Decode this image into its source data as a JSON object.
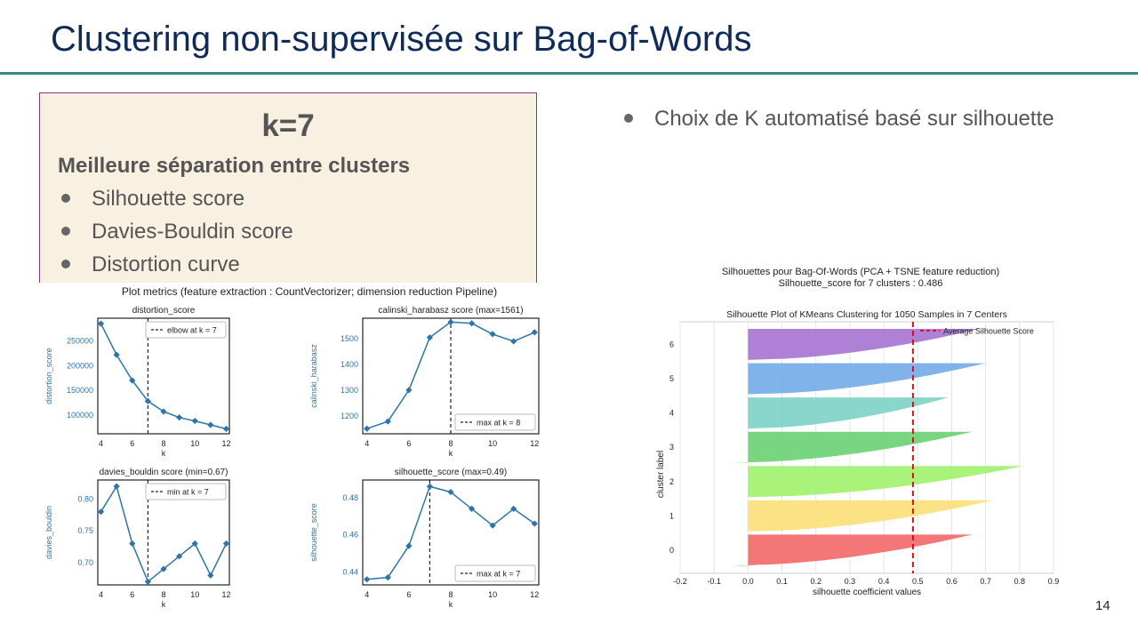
{
  "slide": {
    "title": "Clustering non-supervisée sur Bag-of-Words",
    "page_number": "14",
    "box": {
      "heading": "k=7",
      "subheading": "Meilleure séparation entre clusters",
      "items": [
        "Silhouette score",
        "Davies-Bouldin score",
        "Distortion curve"
      ]
    },
    "right_bullet": "Choix de K automatisé basé sur silhouette",
    "metrics_figure_title": "Plot metrics (feature extraction : CountVectorizer;   dimension reduction Pipeline)",
    "silhouette_figure_title_1": "Silhouettes pour Bag-Of-Words (PCA + TSNE feature reduction)",
    "silhouette_figure_title_2": "Silhouette_score for 7 clusters : 0.486"
  },
  "colors": {
    "title": "#0f2a5c",
    "rule": "#2d8a8a",
    "box_bg": "#f8f1e1",
    "line_series": "#2a75b0",
    "average_line": "#e00000"
  },
  "chart_data": [
    {
      "type": "line",
      "title": "distortion_score",
      "xlabel": "k",
      "ylabel": "distortion_score",
      "x": [
        4,
        5,
        6,
        7,
        8,
        9,
        10,
        11,
        12
      ],
      "values": [
        285000,
        222000,
        170000,
        128000,
        107000,
        95000,
        88000,
        80000,
        72000
      ],
      "xlim": [
        3.8,
        12.2
      ],
      "ylim": [
        62000,
        296000
      ],
      "xticks": [
        4,
        6,
        8,
        10,
        12
      ],
      "yticks": [
        100000,
        150000,
        200000,
        250000
      ],
      "ytick_labels": [
        "100000",
        "150000",
        "200000",
        "250000"
      ],
      "vline": 7,
      "legend": "elbow at k = 7",
      "legend_position": "top-right"
    },
    {
      "type": "line",
      "title": "calinski_harabasz score (max=1561)",
      "xlabel": "k",
      "ylabel": "calinski_harabasz",
      "x": [
        4,
        5,
        6,
        7,
        8,
        9,
        10,
        11,
        12
      ],
      "values": [
        1150,
        1178,
        1300,
        1505,
        1565,
        1560,
        1518,
        1490,
        1525
      ],
      "xlim": [
        3.8,
        12.2
      ],
      "ylim": [
        1130,
        1580
      ],
      "xticks": [
        4,
        6,
        8,
        10,
        12
      ],
      "yticks": [
        1200,
        1300,
        1400,
        1500
      ],
      "ytick_labels": [
        "1200",
        "1300",
        "1400",
        "1500"
      ],
      "vline": 8,
      "legend": "max at k = 8",
      "legend_position": "bottom-right"
    },
    {
      "type": "line",
      "title": "davies_bouldin score (min=0.67)",
      "xlabel": "k",
      "ylabel": "davies_bouldin",
      "x": [
        4,
        5,
        6,
        7,
        8,
        9,
        10,
        11,
        12
      ],
      "values": [
        0.78,
        0.82,
        0.73,
        0.67,
        0.69,
        0.71,
        0.73,
        0.68,
        0.73
      ],
      "xlim": [
        3.8,
        12.2
      ],
      "ylim": [
        0.665,
        0.83
      ],
      "xticks": [
        4,
        6,
        8,
        10,
        12
      ],
      "yticks": [
        0.7,
        0.75,
        0.8
      ],
      "ytick_labels": [
        "0.70",
        "0.75",
        "0.80"
      ],
      "vline": 7,
      "legend": "min at k = 7",
      "legend_position": "top-right"
    },
    {
      "type": "line",
      "title": "silhouette_score (max=0.49)",
      "xlabel": "k",
      "ylabel": "silhouette_score",
      "x": [
        4,
        5,
        6,
        7,
        8,
        9,
        10,
        11,
        12
      ],
      "values": [
        0.436,
        0.437,
        0.454,
        0.486,
        0.483,
        0.474,
        0.465,
        0.474,
        0.466
      ],
      "xlim": [
        3.8,
        12.2
      ],
      "ylim": [
        0.433,
        0.4895
      ],
      "xticks": [
        4,
        6,
        8,
        10,
        12
      ],
      "yticks": [
        0.44,
        0.46,
        0.48
      ],
      "ytick_labels": [
        "0.44",
        "0.46",
        "0.48"
      ],
      "vline": 7,
      "legend": "max at k = 7",
      "legend_position": "bottom-right"
    },
    {
      "type": "area",
      "title": "Silhouette Plot of KMeans Clustering for 1050 Samples in 7 Centers",
      "xlabel": "silhouette coefficient values",
      "ylabel": "cluster label",
      "xlim": [
        -0.2,
        0.9
      ],
      "xticks": [
        -0.2,
        -0.1,
        0.0,
        0.1,
        0.2,
        0.3,
        0.4,
        0.5,
        0.6,
        0.7,
        0.8,
        0.9
      ],
      "xtick_labels": [
        "-0.2",
        "-0.1",
        "0.0",
        "0.1",
        "0.2",
        "0.3",
        "0.4",
        "0.5",
        "0.6",
        "0.7",
        "0.8",
        "0.9"
      ],
      "average_silhouette": 0.486,
      "legend": "Average Silhouette Score",
      "legend_position": "top-right",
      "series": [
        {
          "name": "0",
          "min": -0.05,
          "max": 0.66,
          "color": "#f36b6b"
        },
        {
          "name": "1",
          "min": 0.0,
          "max": 0.72,
          "color": "#fbe07a"
        },
        {
          "name": "2",
          "min": 0.0,
          "max": 0.81,
          "color": "#a3f270"
        },
        {
          "name": "3",
          "min": -0.05,
          "max": 0.66,
          "color": "#6cd175"
        },
        {
          "name": "4",
          "min": 0.0,
          "max": 0.59,
          "color": "#7fd4c8"
        },
        {
          "name": "5",
          "min": 0.0,
          "max": 0.7,
          "color": "#74ace8"
        },
        {
          "name": "6",
          "min": -0.01,
          "max": 0.68,
          "color": "#a776d4"
        }
      ]
    }
  ]
}
